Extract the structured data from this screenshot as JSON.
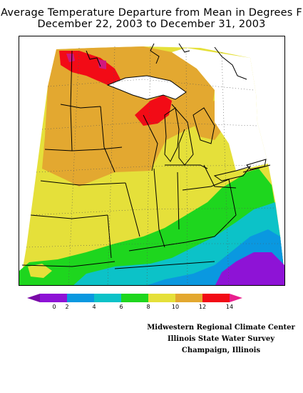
{
  "title": {
    "line1": "Average Temperature Departure from Mean in Degrees F",
    "line2": "December 22, 2003 to December 31, 2003"
  },
  "legend": {
    "ticks": [
      "0",
      "2",
      "4",
      "6",
      "8",
      "10",
      "12",
      "14"
    ],
    "colors": [
      "#7a0aa8",
      "#8e13d6",
      "#0a98e0",
      "#0cc2c8",
      "#1ed61e",
      "#e5e03a",
      "#e3a830",
      "#f20b16",
      "#e81f8e"
    ]
  },
  "credits": {
    "line1": "Midwestern Regional Climate Center",
    "line2": "Illinois State Water Survey",
    "line3": "Champaign, Illinois"
  },
  "map_colors": {
    "orange": "#e3a830",
    "yellow": "#e5e03a",
    "green": "#1ed61e",
    "cyan": "#0cc2c8",
    "blue": "#0a98e0",
    "purple": "#8e13d6",
    "red": "#f20b16",
    "magenta": "#d0187f"
  }
}
